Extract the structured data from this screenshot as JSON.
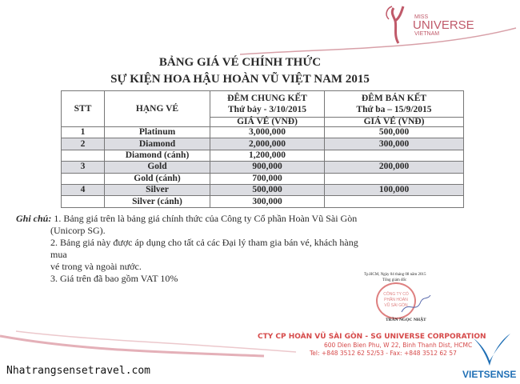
{
  "logo": {
    "miss": "MISS",
    "universe": "UNIVERSE",
    "vietnam": "VIETNAM"
  },
  "title": {
    "line1": "BẢNG GIÁ VÉ CHÍNH THỨC",
    "line2": "SỰ KIỆN HOA HẬU HOÀN VŨ VIỆT NAM 2015"
  },
  "table": {
    "headers": {
      "stt": "STT",
      "hang_ve": "HẠNG VÉ",
      "final": "ĐÊM CHUNG KẾT",
      "final_date": "Thứ bảy - 3/10/2015",
      "semi": "ĐÊM BÁN KẾT",
      "semi_date": "Thứ ba – 15/9/2015",
      "price_final": "GIÁ VÉ (VNĐ)",
      "price_semi": "GIÁ VÉ (VNĐ)"
    },
    "rows": [
      {
        "stt": "1",
        "hang": "Platinum",
        "final": "3,000,000",
        "semi": "500,000"
      },
      {
        "stt": "2",
        "hang": "Diamond",
        "final": "2,000,000",
        "semi": "300,000"
      },
      {
        "stt": "",
        "hang": "Diamond (cánh)",
        "final": "1,200,000",
        "semi": ""
      },
      {
        "stt": "3",
        "hang": "Gold",
        "final": "900,000",
        "semi": "200,000"
      },
      {
        "stt": "",
        "hang": "Gold (cánh)",
        "final": "700,000",
        "semi": ""
      },
      {
        "stt": "4",
        "hang": "Silver",
        "final": "500,000",
        "semi": "100,000"
      },
      {
        "stt": "",
        "hang": "Silver (cánh)",
        "final": "300,000",
        "semi": ""
      }
    ]
  },
  "notes": {
    "label": "Ghi chú:",
    "n1a": "1. Bảng giá trên là bảng giá chính thức của Công ty Cổ phần Hoàn Vũ Sài Gòn",
    "n1b": "(Unicorp SG).",
    "n2a": "2. Bảng giá này được áp dụng cho tất cả các Đại lý tham gia bán vé, khách hàng mua",
    "n2b": "vé trong và ngoài nước.",
    "n3": "3. Giá trên đã bao gồm VAT 10%"
  },
  "signature": {
    "date": "Tp.HCM, Ngày 04 tháng 08 năm 2015",
    "role": "Tổng giám đốc",
    "stamp": "CÔNG TY CỔ PHẦN HOÀN VŨ SÀI GÒN",
    "name": "TRẦN NGỌC NHẬT"
  },
  "footer": {
    "company": "CTY CP HOÀN VŨ SÀI GÒN - SG UNIVERSE CORPORATION",
    "address": "600 Dien Bien Phu, W 22, Binh Thanh Dist, HCMC",
    "tel": "Tel: +848 3512 62 52/53 - Fax: +848 3512 62 57"
  },
  "watermark": "Nhatrangsensetravel.com",
  "vietsense": "VIETSENSE",
  "colors": {
    "brand_red": "#d64a4a",
    "logo_pink": "#c05a6a",
    "vietsense_blue": "#1f6fb5",
    "row_shade": "#dcdde2"
  }
}
